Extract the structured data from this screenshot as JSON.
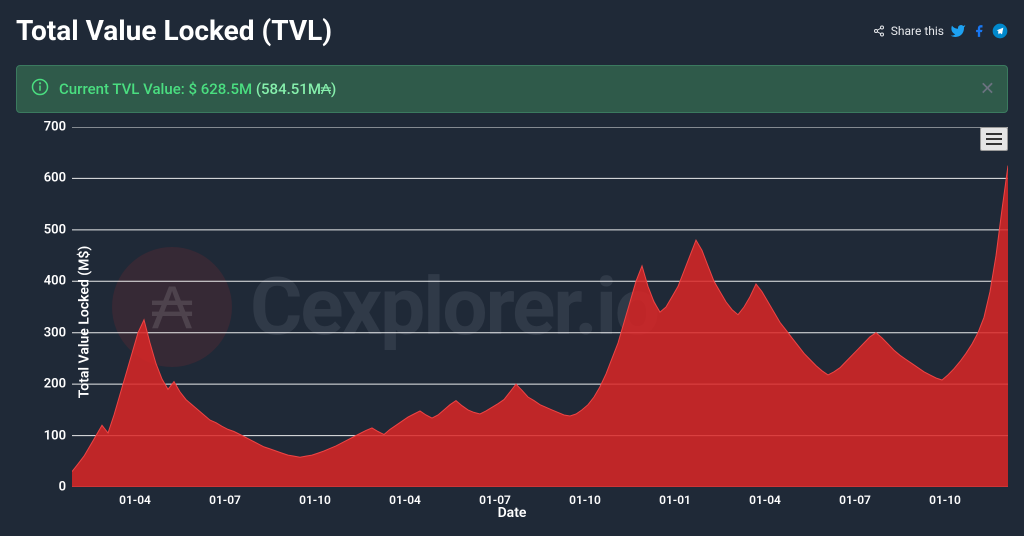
{
  "header": {
    "title": "Total Value Locked (TVL)",
    "share_label": "Share this"
  },
  "banner": {
    "prefix": "Current TVL Value: ",
    "main_value": "$ 628.5M ",
    "sub_value": "(584.51M₳)"
  },
  "chart": {
    "type": "area",
    "ylabel": "Total Value Locked (M$)",
    "xlabel": "Date",
    "ylim": [
      0,
      700
    ],
    "ytick_step": 100,
    "yticks": [
      0,
      100,
      200,
      300,
      400,
      500,
      600,
      700
    ],
    "xticks": [
      "01-04",
      "01-07",
      "01-10",
      "01-04",
      "01-07",
      "01-10",
      "01-01",
      "01-04",
      "01-07",
      "01-10"
    ],
    "fill_color": "#dc2626",
    "fill_opacity": 0.85,
    "line_color": "#ef4444",
    "line_width": 1,
    "background_color": "#1f2937",
    "grid_color": "#ffffff",
    "grid_opacity": 0.9,
    "watermark_text": "Cexplorer.io",
    "watermark_symbol": "₳",
    "values": [
      30,
      45,
      60,
      80,
      100,
      120,
      105,
      140,
      180,
      220,
      260,
      300,
      325,
      280,
      240,
      210,
      190,
      205,
      185,
      170,
      160,
      150,
      140,
      130,
      125,
      118,
      112,
      108,
      102,
      96,
      90,
      84,
      78,
      74,
      70,
      66,
      62,
      60,
      58,
      60,
      62,
      66,
      70,
      75,
      80,
      86,
      92,
      98,
      104,
      110,
      115,
      108,
      102,
      112,
      120,
      128,
      136,
      142,
      148,
      140,
      134,
      140,
      150,
      160,
      168,
      158,
      150,
      145,
      142,
      148,
      155,
      162,
      170,
      185,
      200,
      188,
      175,
      168,
      160,
      155,
      150,
      145,
      140,
      138,
      142,
      150,
      160,
      175,
      195,
      220,
      250,
      280,
      320,
      360,
      400,
      430,
      390,
      360,
      340,
      350,
      370,
      390,
      420,
      450,
      480,
      460,
      430,
      400,
      380,
      360,
      345,
      335,
      350,
      370,
      395,
      380,
      360,
      340,
      320,
      305,
      290,
      275,
      260,
      248,
      236,
      226,
      218,
      224,
      232,
      244,
      256,
      268,
      280,
      292,
      300,
      290,
      278,
      266,
      256,
      248,
      240,
      232,
      224,
      218,
      212,
      208,
      218,
      230,
      244,
      260,
      278,
      300,
      330,
      380,
      450,
      540,
      625
    ]
  },
  "colors": {
    "bg": "#1f2937",
    "text": "#ffffff",
    "banner_bg": "#2f5a4a",
    "banner_text": "#4ade80",
    "twitter": "#1da1f2",
    "facebook": "#1877f2",
    "telegram": "#0088cc"
  }
}
